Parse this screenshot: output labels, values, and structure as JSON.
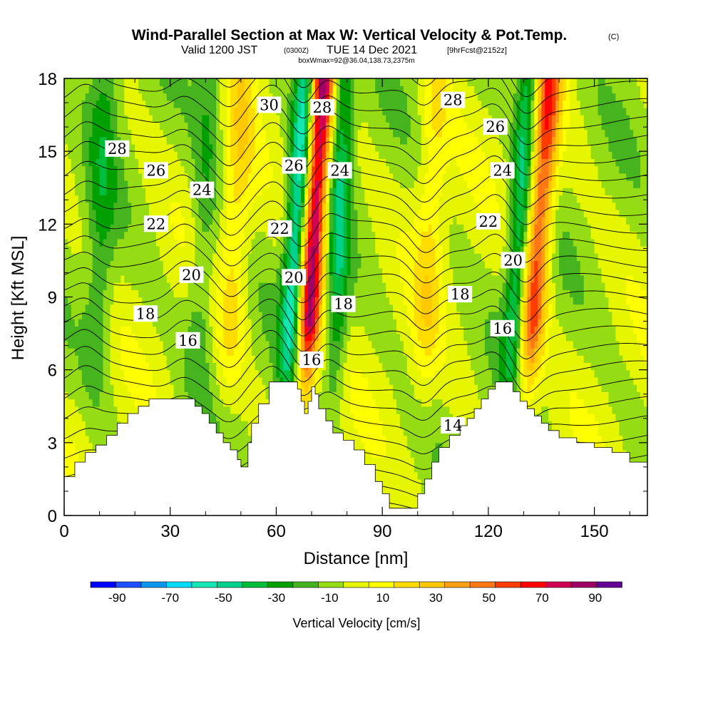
{
  "title": {
    "main": "Wind-Parallel Section at Max W: Vertical Velocity & Pot.Temp.",
    "copyright": "(C)",
    "valid_prefix": "Valid 1200 JST",
    "valid_utc": "(0300Z)",
    "valid_date": "TUE 14 Dec 2021",
    "forecast": "[9hrFcst@2152z]",
    "box": "boxWmax=92@36.04,138.73,2375m"
  },
  "chart_data": {
    "type": "heatmap",
    "xlabel": "Distance [nm]",
    "ylabel": "Height [Kft MSL]",
    "xlim": [
      0,
      165
    ],
    "ylim": [
      0,
      18
    ],
    "x_ticks": [
      "0",
      "30",
      "60",
      "90",
      "120",
      "150"
    ],
    "x_tick_values": [
      0,
      30,
      60,
      90,
      120,
      150
    ],
    "y_ticks": [
      "0",
      "3",
      "6",
      "9",
      "12",
      "15",
      "18"
    ],
    "y_tick_values": [
      0,
      3,
      6,
      9,
      12,
      15,
      18
    ],
    "colorbar": {
      "label": "Vertical Velocity [cm/s]",
      "tick_labels": [
        "-90",
        "-70",
        "-50",
        "-30",
        "-10",
        "10",
        "30",
        "50",
        "70",
        "90"
      ],
      "levels": [
        -100,
        -90,
        -80,
        -70,
        -60,
        -50,
        -40,
        -30,
        -20,
        -10,
        0,
        10,
        20,
        30,
        40,
        50,
        60,
        70,
        80,
        90,
        100
      ],
      "colors": [
        "#0000ff",
        "#1e50ff",
        "#0a96f0",
        "#00dcff",
        "#14e6b4",
        "#00d28c",
        "#00be3c",
        "#00a000",
        "#46b41e",
        "#96dc14",
        "#e6f500",
        "#ffff00",
        "#ffdc00",
        "#ffc800",
        "#ffa014",
        "#ff7814",
        "#ff3c00",
        "#ff0000",
        "#d20050",
        "#a00064",
        "#640096"
      ]
    },
    "terrain": [
      [
        0,
        1.6
      ],
      [
        3,
        1.6
      ],
      [
        3,
        2.2
      ],
      [
        6,
        2.2
      ],
      [
        6,
        2.6
      ],
      [
        9,
        2.6
      ],
      [
        9,
        2.9
      ],
      [
        12,
        2.9
      ],
      [
        12,
        3.3
      ],
      [
        15,
        3.3
      ],
      [
        15,
        3.8
      ],
      [
        18,
        3.8
      ],
      [
        18,
        4.2
      ],
      [
        21,
        4.2
      ],
      [
        21,
        4.5
      ],
      [
        24,
        4.5
      ],
      [
        24,
        4.8
      ],
      [
        37,
        4.8
      ],
      [
        37,
        4.5
      ],
      [
        39,
        4.5
      ],
      [
        39,
        4.2
      ],
      [
        41,
        4.2
      ],
      [
        41,
        3.8
      ],
      [
        43,
        3.8
      ],
      [
        43,
        3.4
      ],
      [
        45,
        3.4
      ],
      [
        45,
        3.0
      ],
      [
        47,
        3.0
      ],
      [
        47,
        2.7
      ],
      [
        49,
        2.7
      ],
      [
        49,
        2.3
      ],
      [
        50,
        2.3
      ],
      [
        50,
        2.0
      ],
      [
        52,
        2.0
      ],
      [
        52,
        3.0
      ],
      [
        53,
        3.0
      ],
      [
        53,
        3.8
      ],
      [
        55,
        3.8
      ],
      [
        55,
        4.6
      ],
      [
        58,
        4.6
      ],
      [
        58,
        5.5
      ],
      [
        66,
        5.5
      ],
      [
        66,
        5.2
      ],
      [
        67,
        5.2
      ],
      [
        67,
        4.7
      ],
      [
        68,
        4.7
      ],
      [
        68,
        4.2
      ],
      [
        69,
        4.2
      ],
      [
        69,
        4.7
      ],
      [
        70,
        4.7
      ],
      [
        70,
        5.3
      ],
      [
        71,
        5.3
      ],
      [
        71,
        5.0
      ],
      [
        72,
        5.0
      ],
      [
        72,
        4.4
      ],
      [
        74,
        4.4
      ],
      [
        74,
        3.9
      ],
      [
        76,
        3.9
      ],
      [
        76,
        3.4
      ],
      [
        79,
        3.4
      ],
      [
        79,
        3.1
      ],
      [
        82,
        3.1
      ],
      [
        82,
        2.7
      ],
      [
        85,
        2.7
      ],
      [
        85,
        2.1
      ],
      [
        88,
        2.1
      ],
      [
        88,
        1.4
      ],
      [
        90,
        1.4
      ],
      [
        90,
        0.9
      ],
      [
        92,
        0.9
      ],
      [
        92,
        0.3
      ],
      [
        100,
        0.3
      ],
      [
        100,
        0.9
      ],
      [
        102,
        0.9
      ],
      [
        102,
        1.5
      ],
      [
        104,
        1.5
      ],
      [
        104,
        2.2
      ],
      [
        106,
        2.2
      ],
      [
        106,
        2.8
      ],
      [
        109,
        2.8
      ],
      [
        109,
        3.3
      ],
      [
        112,
        3.3
      ],
      [
        112,
        3.7
      ],
      [
        114,
        3.7
      ],
      [
        114,
        4.0
      ],
      [
        116,
        4.0
      ],
      [
        116,
        4.4
      ],
      [
        118,
        4.4
      ],
      [
        118,
        4.8
      ],
      [
        120,
        4.8
      ],
      [
        120,
        5.2
      ],
      [
        122,
        5.2
      ],
      [
        122,
        5.5
      ],
      [
        127,
        5.5
      ],
      [
        127,
        5.1
      ],
      [
        129,
        5.1
      ],
      [
        129,
        4.7
      ],
      [
        131,
        4.7
      ],
      [
        131,
        4.4
      ],
      [
        133,
        4.4
      ],
      [
        133,
        4.1
      ],
      [
        135,
        4.1
      ],
      [
        135,
        3.8
      ],
      [
        137,
        3.8
      ],
      [
        137,
        3.5
      ],
      [
        140,
        3.5
      ],
      [
        140,
        3.2
      ],
      [
        145,
        3.2
      ],
      [
        145,
        3.0
      ],
      [
        150,
        3.0
      ],
      [
        150,
        2.8
      ],
      [
        155,
        2.8
      ],
      [
        155,
        2.6
      ],
      [
        160,
        2.6
      ],
      [
        160,
        2.2
      ],
      [
        165,
        2.2
      ]
    ],
    "updrafts": [
      {
        "x_base": 66,
        "slope": 0.4,
        "amplitude": 95,
        "width": 3.2
      },
      {
        "x_base": 128.5,
        "slope": 0.5,
        "amplitude": 65,
        "width": 3.5
      },
      {
        "x_base": 45,
        "slope": 0.3,
        "amplitude": 22,
        "width": 4
      },
      {
        "x_base": 100,
        "slope": 0.3,
        "amplitude": 20,
        "width": 4
      }
    ],
    "downdrafts": [
      {
        "x_base": 61,
        "slope": 0.4,
        "amplitude": -55,
        "width": 3
      },
      {
        "x_base": 75.5,
        "slope": 0.2,
        "amplitude": -35,
        "width": 3
      },
      {
        "x_base": 124,
        "slope": 0.4,
        "amplitude": -40,
        "width": 3
      },
      {
        "x_base": 36,
        "slope": 0.3,
        "amplitude": -18,
        "width": 4
      },
      {
        "x_base": 8,
        "slope": 0.2,
        "amplitude": -20,
        "width": 4
      }
    ],
    "pot_temp_contours": [
      {
        "value": 14,
        "label": "14",
        "label_x": 110,
        "label_y": 3.7
      },
      {
        "value": 16,
        "label": "16",
        "label_x": 35,
        "label_y": 7.2
      },
      {
        "value": 16,
        "label": "16",
        "label_x": 70,
        "label_y": 6.4
      },
      {
        "value": 16,
        "label": "16",
        "label_x": 124,
        "label_y": 7.7
      },
      {
        "value": 18,
        "label": "18",
        "label_x": 23,
        "label_y": 8.3
      },
      {
        "value": 18,
        "label": "18",
        "label_x": 79,
        "label_y": 8.7
      },
      {
        "value": 18,
        "label": "18",
        "label_x": 112,
        "label_y": 9.1
      },
      {
        "value": 20,
        "label": "20",
        "label_x": 36,
        "label_y": 9.9
      },
      {
        "value": 20,
        "label": "20",
        "label_x": 65,
        "label_y": 9.8
      },
      {
        "value": 20,
        "label": "20",
        "label_x": 127,
        "label_y": 10.5
      },
      {
        "value": 22,
        "label": "22",
        "label_x": 26,
        "label_y": 12.0
      },
      {
        "value": 22,
        "label": "22",
        "label_x": 61,
        "label_y": 11.8
      },
      {
        "value": 22,
        "label": "22",
        "label_x": 120,
        "label_y": 12.1
      },
      {
        "value": 24,
        "label": "24",
        "label_x": 39,
        "label_y": 13.4
      },
      {
        "value": 24,
        "label": "24",
        "label_x": 78,
        "label_y": 14.2
      },
      {
        "value": 24,
        "label": "24",
        "label_x": 124,
        "label_y": 14.2
      },
      {
        "value": 26,
        "label": "26",
        "label_x": 26,
        "label_y": 14.2
      },
      {
        "value": 26,
        "label": "26",
        "label_x": 65,
        "label_y": 14.4
      },
      {
        "value": 26,
        "label": "26",
        "label_x": 122,
        "label_y": 16.0
      },
      {
        "value": 28,
        "label": "28",
        "label_x": 15,
        "label_y": 15.1
      },
      {
        "value": 28,
        "label": "28",
        "label_x": 73,
        "label_y": 16.8
      },
      {
        "value": 28,
        "label": "28",
        "label_x": 110,
        "label_y": 17.1
      },
      {
        "value": 30,
        "label": "30",
        "label_x": 58,
        "label_y": 16.9
      }
    ]
  }
}
